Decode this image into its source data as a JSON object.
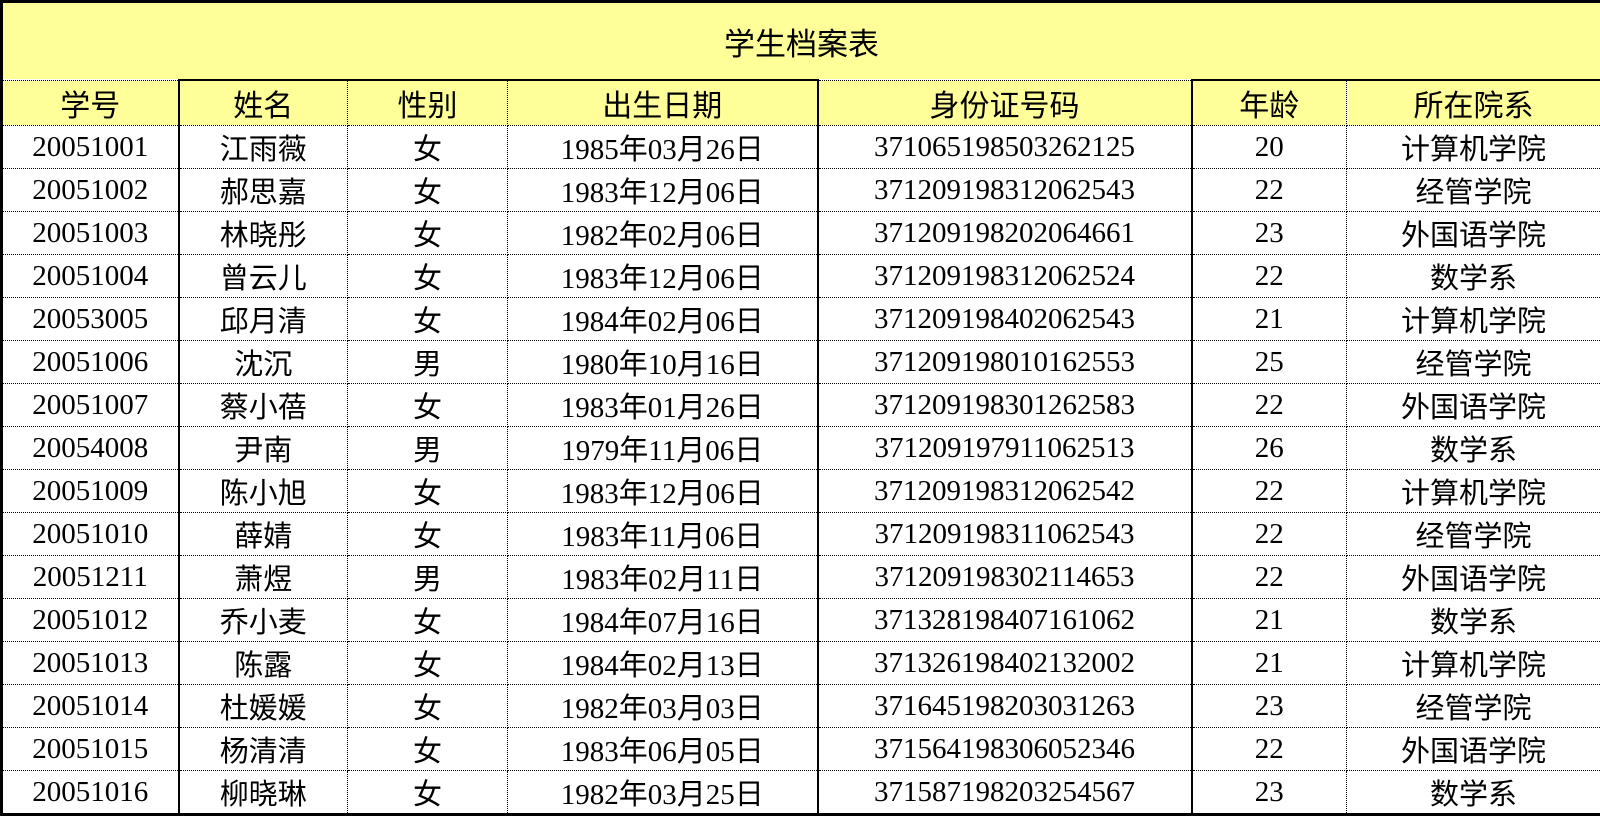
{
  "title": "学生档案表",
  "colors": {
    "title_bg": "#FFFF99",
    "header_bg": "#FFFF99",
    "row_bg": "#FFFFFF",
    "border": "#000000",
    "text": "#000000"
  },
  "table": {
    "headers": [
      "学号",
      "姓名",
      "性别",
      "出生日期",
      "身份证号码",
      "年龄",
      "所在院系"
    ],
    "column_keys": [
      "student_id",
      "name",
      "gender",
      "birth_date",
      "id_number",
      "age",
      "department"
    ],
    "rows": [
      {
        "student_id": "20051001",
        "name": "江雨薇",
        "gender": "女",
        "birth_date": "1985年03月26日",
        "id_number": "371065198503262125",
        "age": "20",
        "department": "计算机学院"
      },
      {
        "student_id": "20051002",
        "name": "郝思嘉",
        "gender": "女",
        "birth_date": "1983年12月06日",
        "id_number": "371209198312062543",
        "age": "22",
        "department": "经管学院"
      },
      {
        "student_id": "20051003",
        "name": "林晓彤",
        "gender": "女",
        "birth_date": "1982年02月06日",
        "id_number": "371209198202064661",
        "age": "23",
        "department": "外国语学院"
      },
      {
        "student_id": "20051004",
        "name": "曾云儿",
        "gender": "女",
        "birth_date": "1983年12月06日",
        "id_number": "371209198312062524",
        "age": "22",
        "department": "数学系"
      },
      {
        "student_id": "20053005",
        "name": "邱月清",
        "gender": "女",
        "birth_date": "1984年02月06日",
        "id_number": "371209198402062543",
        "age": "21",
        "department": "计算机学院"
      },
      {
        "student_id": "20051006",
        "name": "沈沉",
        "gender": "男",
        "birth_date": "1980年10月16日",
        "id_number": "371209198010162553",
        "age": "25",
        "department": "经管学院"
      },
      {
        "student_id": "20051007",
        "name": "蔡小蓓",
        "gender": "女",
        "birth_date": "1983年01月26日",
        "id_number": "371209198301262583",
        "age": "22",
        "department": "外国语学院"
      },
      {
        "student_id": "20054008",
        "name": "尹南",
        "gender": "男",
        "birth_date": "1979年11月06日",
        "id_number": "371209197911062513",
        "age": "26",
        "department": "数学系"
      },
      {
        "student_id": "20051009",
        "name": "陈小旭",
        "gender": "女",
        "birth_date": "1983年12月06日",
        "id_number": "371209198312062542",
        "age": "22",
        "department": "计算机学院"
      },
      {
        "student_id": "20051010",
        "name": "薛婧",
        "gender": "女",
        "birth_date": "1983年11月06日",
        "id_number": "371209198311062543",
        "age": "22",
        "department": "经管学院"
      },
      {
        "student_id": "20051211",
        "name": "萧煜",
        "gender": "男",
        "birth_date": "1983年02月11日",
        "id_number": "371209198302114653",
        "age": "22",
        "department": "外国语学院"
      },
      {
        "student_id": "20051012",
        "name": "乔小麦",
        "gender": "女",
        "birth_date": "1984年07月16日",
        "id_number": "371328198407161062",
        "age": "21",
        "department": "数学系"
      },
      {
        "student_id": "20051013",
        "name": "陈露",
        "gender": "女",
        "birth_date": "1984年02月13日",
        "id_number": "371326198402132002",
        "age": "21",
        "department": "计算机学院"
      },
      {
        "student_id": "20051014",
        "name": "杜媛媛",
        "gender": "女",
        "birth_date": "1982年03月03日",
        "id_number": "371645198203031263",
        "age": "23",
        "department": "经管学院"
      },
      {
        "student_id": "20051015",
        "name": "杨清清",
        "gender": "女",
        "birth_date": "1983年06月05日",
        "id_number": "371564198306052346",
        "age": "22",
        "department": "外国语学院"
      },
      {
        "student_id": "20051016",
        "name": "柳晓琳",
        "gender": "女",
        "birth_date": "1982年03月25日",
        "id_number": "371587198203254567",
        "age": "23",
        "department": "数学系"
      }
    ]
  }
}
